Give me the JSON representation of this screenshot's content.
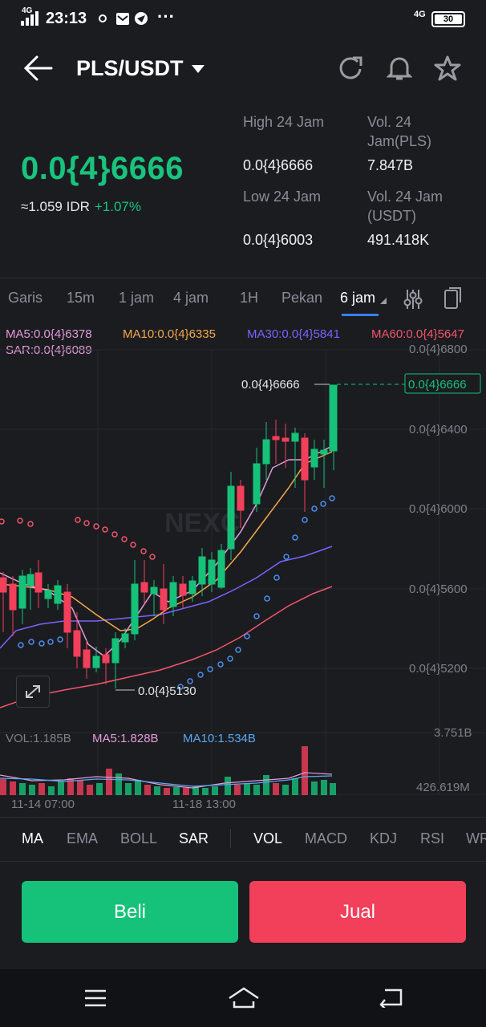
{
  "status_bar": {
    "network": "4G",
    "time": "23:13",
    "network_right": "4G",
    "battery": "30"
  },
  "header": {
    "pair": "PLS/USDT"
  },
  "ticker": {
    "price": "0.0{4}6666",
    "idr": "≈1.059 IDR",
    "change": "+1.07%",
    "high_label": "High 24 Jam",
    "high_value": "0.0{4}6666",
    "low_label": "Low 24 Jam",
    "low_value": "0.0{4}6003",
    "vol_pls_label_1": "Vol. 24",
    "vol_pls_label_2": "Jam(PLS)",
    "vol_pls_value": "7.847B",
    "vol_usdt_label_1": "Vol. 24 Jam",
    "vol_usdt_label_2": "(USDT)",
    "vol_usdt_value": "491.418K"
  },
  "tabs": [
    {
      "label": "Garis"
    },
    {
      "label": "15m"
    },
    {
      "label": "1 jam"
    },
    {
      "label": "4 jam"
    },
    {
      "label": "1H"
    },
    {
      "label": "Pekan"
    },
    {
      "label": "6 jam"
    }
  ],
  "chart": {
    "ma5": "MA5:0.0{4}6378",
    "ma10": "MA10:0.0{4}6335",
    "ma30": "MA30:0.0{4}5841",
    "ma60": "MA60:0.0{4}5647",
    "sar": "SAR:0.0{4}6089",
    "y_ticks": [
      "0.0{4}6800",
      "0.0{4}6400",
      "0.0{4}6000",
      "0.0{4}5600",
      "0.0{4}5200"
    ],
    "high_marker": "0.0{4}6666",
    "last_price_tag": "0.0{4}6666",
    "low_marker": "0.0{4}5130",
    "vol_label": "VOL:1.185B",
    "vol_ma5": "MA5:1.828B",
    "vol_ma10": "MA10:1.534B",
    "vol_max": "3.751B",
    "vol_min": "426.619M",
    "x_ticks": [
      "11-14 07:00",
      "11-18 13:00"
    ],
    "watermark": "NEXC"
  },
  "indicators": [
    {
      "label": "MA"
    },
    {
      "label": "EMA"
    },
    {
      "label": "BOLL"
    },
    {
      "label": "SAR"
    },
    {
      "label": "VOL"
    },
    {
      "label": "MACD"
    },
    {
      "label": "KDJ"
    },
    {
      "label": "RSI"
    },
    {
      "label": "WR"
    }
  ],
  "actions": {
    "buy": "Beli",
    "sell": "Jual"
  },
  "colors": {
    "up": "#16c17a",
    "down": "#f23f5a",
    "ma5": "#e59bd9",
    "ma10": "#f4a94a",
    "ma30": "#7b62ff",
    "ma60": "#f2556a",
    "sar": "#4a8ff2"
  }
}
